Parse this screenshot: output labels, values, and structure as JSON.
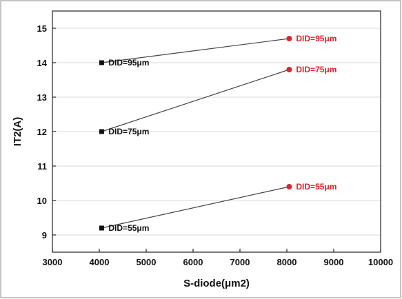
{
  "chart_data": {
    "type": "scatter",
    "xlabel": "S-diode(μm2)",
    "ylabel": "IT2(A)",
    "xlim": [
      3000,
      10000
    ],
    "ylim": [
      8.5,
      15.5
    ],
    "xticks": [
      3000,
      4000,
      5000,
      6000,
      7000,
      8000,
      9000,
      10000
    ],
    "yticks": [
      9,
      10,
      11,
      12,
      13,
      14,
      15
    ],
    "grid": true,
    "colors": {
      "left": "#111111",
      "right": "#e8202a",
      "line": "#444444",
      "grid": "#d8d8d8"
    },
    "pairs": [
      {
        "x1": 4050,
        "y1": 14.0,
        "label1": "DID=95μm",
        "x2": 8050,
        "y2": 14.7,
        "label2": "DID=95μm"
      },
      {
        "x1": 4050,
        "y1": 12.0,
        "label1": "DID=75μm",
        "x2": 8050,
        "y2": 13.8,
        "label2": "DID=75μm"
      },
      {
        "x1": 4050,
        "y1": 9.2,
        "label1": "DID=55μm",
        "x2": 8050,
        "y2": 10.4,
        "label2": "DID=55μm"
      }
    ]
  }
}
